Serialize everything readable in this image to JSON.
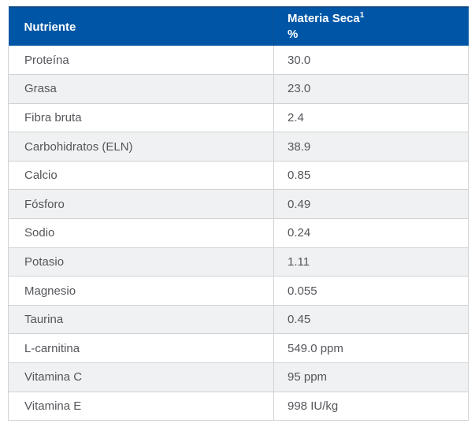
{
  "table": {
    "header": {
      "col1": "Nutriente",
      "col2_title": "Materia Seca",
      "col2_sup": "1",
      "col2_unit": "%"
    },
    "rows": [
      {
        "nutrient": "Proteína",
        "value": "30.0"
      },
      {
        "nutrient": "Grasa",
        "value": "23.0"
      },
      {
        "nutrient": "Fibra bruta",
        "value": "2.4"
      },
      {
        "nutrient": "Carbohidratos (ELN)",
        "value": "38.9"
      },
      {
        "nutrient": "Calcio",
        "value": "0.85"
      },
      {
        "nutrient": "Fósforo",
        "value": "0.49"
      },
      {
        "nutrient": "Sodio",
        "value": "0.24"
      },
      {
        "nutrient": "Potasio",
        "value": "1.11"
      },
      {
        "nutrient": "Magnesio",
        "value": "0.055"
      },
      {
        "nutrient": "Taurina",
        "value": "0.45"
      },
      {
        "nutrient": "L-carnitina",
        "value": "549.0 ppm"
      },
      {
        "nutrient": "Vitamina C",
        "value": "95 ppm"
      },
      {
        "nutrient": "Vitamina E",
        "value": "998 IU/kg"
      }
    ]
  },
  "colors": {
    "header_bg": "#0056a6",
    "header_top_border": "#0b4a86",
    "header_divider": "#11508f",
    "alt_row_bg": "#f0f1f2",
    "border": "#d1d2d4",
    "body_text": "#54565b",
    "header_text": "#ffffff"
  }
}
